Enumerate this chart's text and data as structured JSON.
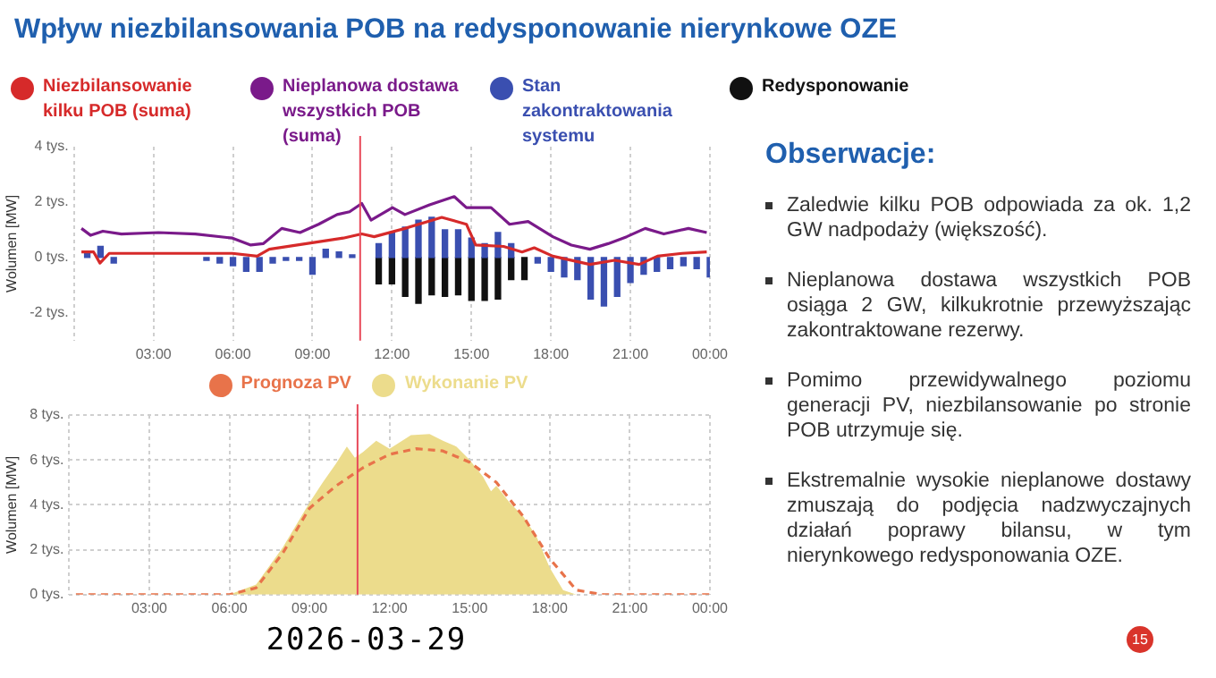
{
  "chart_data": [
    {
      "type": "line",
      "title": "Wpływ niezbilansowania POB na redysponowanie nierynkowe OZE",
      "ylabel": "Wolumen [MW]",
      "legend": "top",
      "grid": "x",
      "marker": "none",
      "xlim": [
        0,
        24
      ],
      "xticks": [
        {
          "value": 0,
          "label": null
        },
        {
          "value": 3,
          "label": "03:00"
        },
        {
          "value": 6,
          "label": "06:00"
        },
        {
          "value": 9,
          "label": "09:00"
        },
        {
          "value": 12,
          "label": "12:00"
        },
        {
          "value": 15,
          "label": "15:00"
        },
        {
          "value": 18,
          "label": "18:00"
        },
        {
          "value": 21,
          "label": "21:00"
        },
        {
          "value": 24,
          "label": "00:00"
        }
      ],
      "ylim": [
        -3,
        4
      ],
      "yticks": [
        {
          "value": -2,
          "label": "-2 tys."
        },
        {
          "value": 0,
          "label": "0 tys."
        },
        {
          "value": 2,
          "label": "2 tys."
        },
        {
          "value": 4,
          "label": "4 tys."
        }
      ],
      "ref_lines": [
        {
          "axis": "x",
          "value": 10.8,
          "color": "#e8495a"
        }
      ],
      "series": [
        {
          "name": "Niezbilansowanie kilku POB  (suma)",
          "color": "#d62a2a",
          "x": [
            0.28,
            0.74,
            0.98,
            1.33,
            3.19,
            5.98,
            6.91,
            7.37,
            8.77,
            10.16,
            10.86,
            11.33,
            12.49,
            13.88,
            14.81,
            15.16,
            16.21,
            16.91,
            17.37,
            18.07,
            19.47,
            20.4,
            21.33,
            22.02,
            22.95,
            23.88
          ],
          "values": [
            0.2,
            0.2,
            -0.2,
            0.15,
            0.15,
            0.15,
            0.05,
            0.3,
            0.5,
            0.7,
            0.85,
            0.75,
            1.05,
            1.45,
            1.2,
            0.45,
            0.4,
            0.2,
            0.35,
            0.05,
            -0.25,
            -0.1,
            -0.25,
            0.05,
            0.15,
            0.2
          ]
        },
        {
          "name": "Nieplanowa dostawa wszystkich POB (suma)",
          "color": "#7a1a8a",
          "x": [
            0.28,
            0.63,
            1.09,
            1.79,
            3.19,
            4.58,
            5.98,
            6.67,
            7.14,
            7.84,
            8.53,
            9.23,
            9.93,
            10.4,
            10.86,
            11.21,
            12.02,
            12.49,
            13.42,
            14.35,
            14.81,
            15.74,
            16.44,
            17.14,
            18.07,
            18.77,
            19.47,
            20.16,
            20.86,
            21.56,
            22.26,
            23.19,
            23.88
          ],
          "values": [
            1.05,
            0.8,
            0.95,
            0.85,
            0.9,
            0.85,
            0.7,
            0.45,
            0.5,
            1.05,
            0.9,
            1.2,
            1.55,
            1.65,
            1.95,
            1.35,
            1.8,
            1.55,
            1.9,
            2.2,
            1.8,
            1.8,
            1.2,
            1.3,
            0.75,
            0.45,
            0.3,
            0.5,
            0.75,
            1.05,
            0.85,
            1.05,
            0.9
          ]
        },
        {
          "name": "Stan zakontraktowania systemu",
          "type": "bar",
          "color": "#3a4fb0",
          "x": [
            0.5,
            1,
            1.5,
            5,
            5.5,
            6,
            6.5,
            7,
            7.5,
            8,
            8.5,
            9,
            9.5,
            10,
            10.5,
            11.5,
            12,
            12.5,
            13,
            13.5,
            14,
            14.5,
            15,
            15.5,
            16,
            16.5,
            17.5,
            18,
            18.5,
            19,
            19.5,
            20,
            20.5,
            21,
            21.5,
            22,
            22.5,
            23,
            23.5,
            24
          ],
          "values": [
            0.15,
            0.4,
            -0.2,
            -0.1,
            -0.2,
            -0.3,
            -0.5,
            -0.5,
            -0.2,
            -0.1,
            -0.1,
            -0.6,
            0.3,
            0.2,
            0.1,
            0.5,
            0.9,
            1.1,
            1.35,
            1.45,
            1.0,
            1.0,
            0.7,
            0.5,
            0.9,
            0.5,
            -0.2,
            -0.5,
            -0.7,
            -0.8,
            -1.5,
            -1.75,
            -1.4,
            -0.9,
            -0.6,
            -0.5,
            -0.4,
            -0.3,
            -0.4,
            -0.7
          ]
        },
        {
          "name": "Redysponowanie",
          "type": "bar",
          "color": "#111111",
          "x": [
            11.5,
            12,
            12.5,
            13,
            13.5,
            14,
            14.5,
            15,
            15.5,
            16,
            16.5,
            17
          ],
          "values": [
            -0.95,
            -0.95,
            -1.4,
            -1.65,
            -1.35,
            -1.4,
            -1.35,
            -1.55,
            -1.55,
            -1.5,
            -0.8,
            -0.8
          ]
        }
      ]
    },
    {
      "type": "line",
      "ylabel": "Wolumen [MW]",
      "xlabel": "2026-03-29",
      "legend": "top",
      "grid": true,
      "marker": "none",
      "annotations": [
        "15"
      ],
      "xlim": [
        0,
        24
      ],
      "xticks": [
        {
          "value": 0,
          "label": null
        },
        {
          "value": 3,
          "label": "03:00"
        },
        {
          "value": 6,
          "label": "06:00"
        },
        {
          "value": 9,
          "label": "09:00"
        },
        {
          "value": 12,
          "label": "12:00"
        },
        {
          "value": 15,
          "label": "15:00"
        },
        {
          "value": 18,
          "label": "18:00"
        },
        {
          "value": 21,
          "label": "21:00"
        },
        {
          "value": 24,
          "label": "00:00"
        }
      ],
      "ylim": [
        0,
        8
      ],
      "yticks": [
        {
          "value": 0,
          "label": "0 tys."
        },
        {
          "value": 2,
          "label": "2 tys."
        },
        {
          "value": 4,
          "label": "4 tys."
        },
        {
          "value": 6,
          "label": "6 tys."
        },
        {
          "value": 8,
          "label": "8 tys."
        }
      ],
      "ref_lines": [
        {
          "axis": "x",
          "value": 10.8,
          "color": "#e8495a"
        }
      ],
      "series": [
        {
          "name": "Prognoza PV",
          "color": "#e8734a",
          "line_style": "dashed",
          "x": [
            0.25,
            6,
            7,
            8,
            9,
            10,
            11,
            12,
            13,
            14,
            15,
            16,
            17,
            18,
            19,
            20,
            24
          ],
          "values": [
            0,
            0,
            0.3,
            1.85,
            3.85,
            4.85,
            5.65,
            6.25,
            6.5,
            6.4,
            5.9,
            5.0,
            3.5,
            1.6,
            0.2,
            0,
            0
          ]
        },
        {
          "name": "Wykonanie PV",
          "type": "area",
          "color": "#ecdc8c",
          "x": [
            0.25,
            6,
            7,
            8,
            9,
            9.5,
            10,
            10.4,
            10.7,
            11,
            11.5,
            12,
            12.8,
            13.5,
            14,
            14.5,
            15,
            15.5,
            15.8,
            16,
            16.5,
            17,
            17.5,
            18,
            18.5,
            19,
            24
          ],
          "values": [
            0,
            0,
            0.45,
            2.1,
            4.1,
            5.0,
            5.85,
            6.6,
            6.1,
            6.35,
            6.85,
            6.5,
            7.1,
            7.15,
            6.85,
            6.6,
            6.0,
            5.25,
            4.6,
            4.85,
            4.1,
            3.5,
            2.6,
            1.2,
            0.2,
            0,
            0
          ]
        }
      ]
    },
    {
      "type": "other",
      "title": "Obserwacje:",
      "annotations": [
        "Zaledwie kilku POB odpowiada za ok. 1,2 GW nadpodaży (większość).",
        "Nieplanowa dostawa wszystkich POB osiąga 2 GW, kilkukrotnie przewyższając zakontraktowane rezerwy.",
        "Pomimo przewidywalnego poziomu generacji PV, niezbilansowanie po stronie POB utrzymuje się.",
        "Ekstremalnie wysokie nieplanowe dostawy zmuszają do podjęcia nadzwyczajnych działań poprawy bilansu, w tym nierynkowego redysponowania OZE."
      ]
    }
  ]
}
